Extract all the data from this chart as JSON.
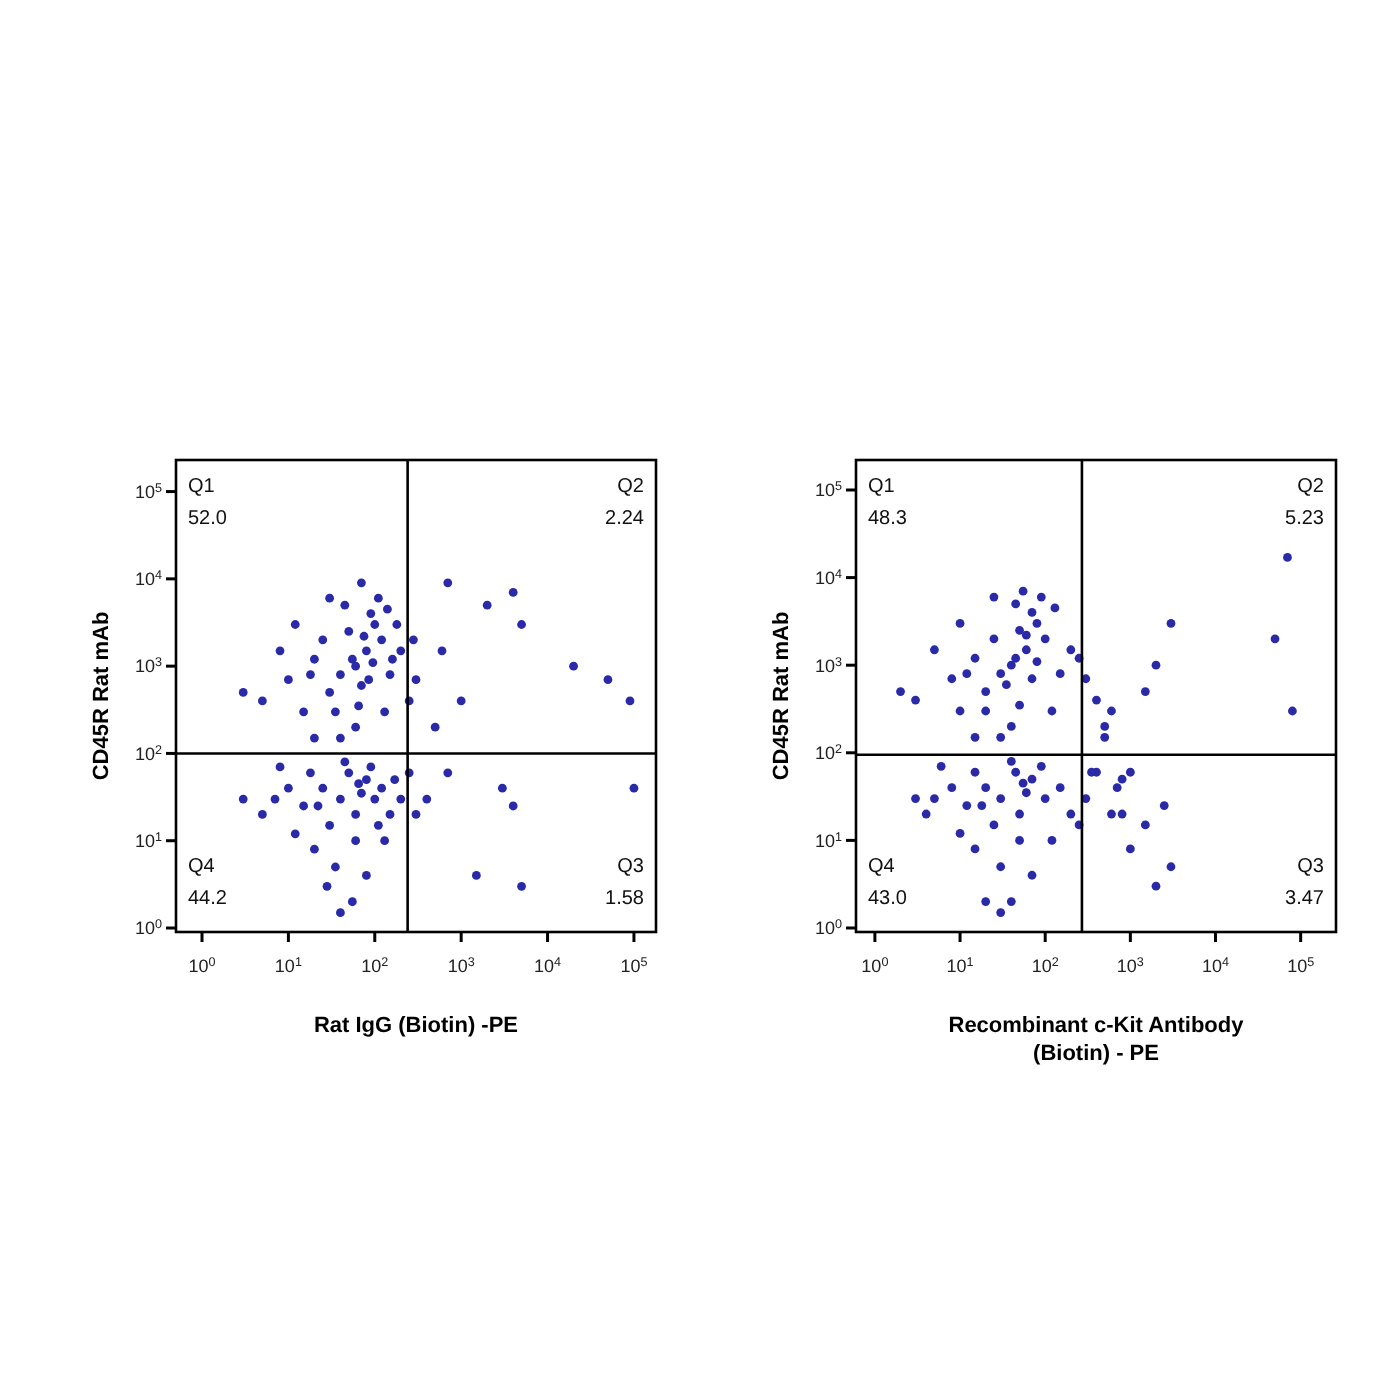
{
  "chart_data": [
    {
      "type": "scatter",
      "xlabel": "Rat IgG (Biotin) -PE",
      "ylabel": "CD45R Rat mAb",
      "log": "xy",
      "marker": "circle",
      "grid": false,
      "xlim": [
        0.5,
        180000
      ],
      "ylim": [
        0.9,
        230000
      ],
      "xticks": [
        {
          "value": 1,
          "label": "10$^{0}$"
        },
        {
          "value": 10,
          "label": "10$^{1}$"
        },
        {
          "value": 100,
          "label": "10$^{2}$"
        },
        {
          "value": 1000,
          "label": "10$^{3}$"
        },
        {
          "value": 10000,
          "label": "10$^{4}$"
        },
        {
          "value": 100000,
          "label": "10$^{5}$"
        }
      ],
      "yticks": [
        {
          "value": 1,
          "label": "10$^{0}$"
        },
        {
          "value": 10,
          "label": "10$^{1}$"
        },
        {
          "value": 100,
          "label": "10$^{2}$"
        },
        {
          "value": 1000,
          "label": "10$^{3}$"
        },
        {
          "value": 10000,
          "label": "10$^{4}$"
        },
        {
          "value": 100000,
          "label": "10$^{5}$"
        }
      ],
      "ref_lines": [
        {
          "axis": "x",
          "value": 240,
          "color": "#000000"
        },
        {
          "axis": "y",
          "value": 100,
          "color": "#000000"
        }
      ],
      "annotations": [
        "Q1\n52.0",
        "Q2\n2.24",
        "Q4\n44.2",
        "Q3\n1.58"
      ],
      "series": [
        {
          "color": "#2a2aa8",
          "x": [
            60,
            40,
            80,
            100,
            30,
            20,
            50,
            70,
            120,
            150,
            10,
            15,
            25,
            90,
            45,
            35,
            200,
            250,
            8,
            5,
            60,
            110,
            130,
            180,
            20,
            40,
            70,
            12,
            300,
            280,
            55,
            85,
            3,
            65,
            95,
            140,
            30,
            18,
            75,
            160,
            40,
            25,
            60,
            80,
            100,
            15,
            30,
            50,
            120,
            150,
            10,
            7,
            5,
            20,
            35,
            60,
            90,
            200,
            250,
            300,
            45,
            70,
            18,
            12,
            28,
            55,
            80,
            130,
            3,
            40,
            22,
            65,
            110,
            170,
            8,
            700,
            2000,
            4000,
            5000,
            1000,
            20000,
            50000,
            90000,
            600,
            700,
            3000,
            4000,
            1500,
            5000,
            100000,
            500,
            400
          ],
          "values": [
            1000,
            800,
            1500,
            3000,
            500,
            1200,
            2500,
            600,
            2000,
            800,
            700,
            300,
            2000,
            4000,
            5000,
            300,
            1500,
            400,
            1500,
            400,
            200,
            6000,
            300,
            3000,
            150,
            150,
            9000,
            3000,
            700,
            2000,
            1200,
            700,
            500,
            350,
            1100,
            4500,
            6000,
            800,
            2200,
            1200,
            30,
            40,
            20,
            50,
            30,
            25,
            15,
            60,
            40,
            20,
            40,
            30,
            20,
            8,
            5,
            10,
            70,
            30,
            60,
            20,
            80,
            35,
            60,
            12,
            3,
            2,
            4,
            10,
            30,
            1.5,
            25,
            45,
            15,
            50,
            70,
            9000,
            5000,
            7000,
            3000,
            400,
            1000,
            700,
            400,
            1500,
            60,
            40,
            25,
            4,
            3,
            40,
            200,
            30
          ]
        }
      ]
    },
    {
      "type": "scatter",
      "xlabel": "Recombinant c-Kit Antibody (Biotin) - PE",
      "ylabel": "CD45R Rat mAb",
      "log": "xy",
      "marker": "circle",
      "grid": false,
      "xlim": [
        0.6,
        260000
      ],
      "ylim": [
        0.9,
        220000
      ],
      "xticks": [
        {
          "value": 1,
          "label": "10$^{0}$"
        },
        {
          "value": 10,
          "label": "10$^{1}$"
        },
        {
          "value": 100,
          "label": "10$^{2}$"
        },
        {
          "value": 1000,
          "label": "10$^{3}$"
        },
        {
          "value": 10000,
          "label": "10$^{4}$"
        },
        {
          "value": 100000,
          "label": "10$^{5}$"
        }
      ],
      "yticks": [
        {
          "value": 1,
          "label": "10$^{0}$"
        },
        {
          "value": 10,
          "label": "10$^{1}$"
        },
        {
          "value": 100,
          "label": "10$^{2}$"
        },
        {
          "value": 1000,
          "label": "10$^{3}$"
        },
        {
          "value": 10000,
          "label": "10$^{4}$"
        },
        {
          "value": 100000,
          "label": "10$^{5}$"
        }
      ],
      "ref_lines": [
        {
          "axis": "x",
          "value": 270,
          "color": "#000000"
        },
        {
          "axis": "y",
          "value": 95,
          "color": "#000000"
        }
      ],
      "annotations": [
        "Q1\n48.3",
        "Q2\n5.23",
        "Q4\n43.0",
        "Q3\n3.47"
      ],
      "series": [
        {
          "color": "#2a2aa8",
          "x": [
            40,
            30,
            60,
            80,
            20,
            15,
            50,
            35,
            100,
            150,
            8,
            10,
            25,
            70,
            45,
            20,
            200,
            400,
            5,
            3,
            40,
            90,
            120,
            600,
            15,
            30,
            55,
            10,
            300,
            500,
            45,
            70,
            2,
            50,
            80,
            130,
            25,
            12,
            60,
            250,
            30,
            20,
            50,
            70,
            100,
            12,
            25,
            45,
            150,
            200,
            8,
            5,
            4,
            15,
            30,
            50,
            90,
            300,
            400,
            600,
            40,
            60,
            15,
            10,
            20,
            40,
            70,
            120,
            3,
            30,
            18,
            55,
            250,
            800,
            6,
            70000,
            50000,
            80000,
            3000,
            2000,
            1500,
            800,
            1500,
            2500,
            2000,
            3000,
            1000,
            700,
            1000,
            350,
            500
          ],
          "values": [
            1000,
            800,
            1500,
            3000,
            500,
            1200,
            2500,
            600,
            2000,
            800,
            700,
            300,
            2000,
            4000,
            5000,
            300,
            1500,
            400,
            1500,
            400,
            200,
            6000,
            300,
            300,
            150,
            150,
            7000,
            3000,
            700,
            200,
            1200,
            700,
            500,
            350,
            1100,
            4500,
            6000,
            800,
            2200,
            1200,
            30,
            40,
            20,
            50,
            30,
            25,
            15,
            60,
            40,
            20,
            40,
            30,
            20,
            8,
            5,
            10,
            70,
            30,
            60,
            20,
            80,
            35,
            60,
            12,
            2,
            2,
            4,
            10,
            30,
            1.5,
            25,
            45,
            15,
            50,
            70,
            17000,
            2000,
            300,
            3000,
            1000,
            500,
            20,
            15,
            25,
            3,
            5,
            60,
            40,
            8,
            60,
            150
          ]
        }
      ]
    }
  ]
}
